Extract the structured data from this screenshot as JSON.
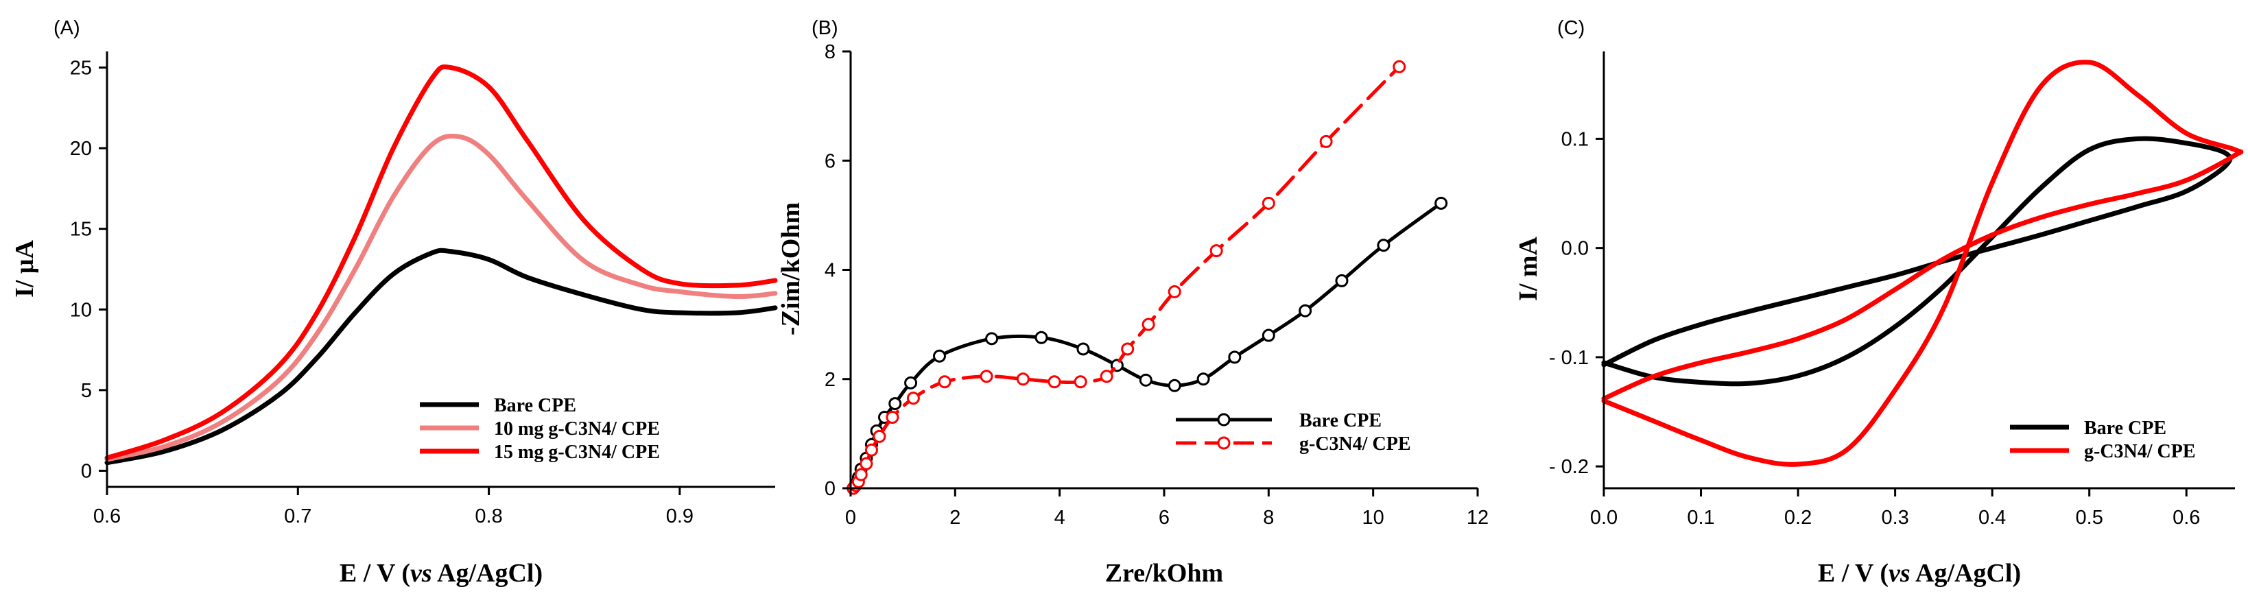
{
  "chart_data": [
    {
      "type": "line",
      "panel_label": "(A)",
      "xlabel_parts": [
        "E / V (",
        "vs",
        " Ag/AgCl)"
      ],
      "ylabel": "I/ μA",
      "xlim": [
        0.6,
        0.95
      ],
      "ylim": [
        -1,
        26
      ],
      "xticks": [
        0.6,
        0.7,
        0.8,
        0.9
      ],
      "xtick_labels": [
        "0.6",
        "0.7",
        "0.8",
        "0.9"
      ],
      "yticks": [
        0,
        5,
        10,
        15,
        20,
        25
      ],
      "ytick_labels": [
        "0",
        "5",
        "10",
        "15",
        "20",
        "25"
      ],
      "legend_position": "bottom-right",
      "series": [
        {
          "name": "Bare CPE",
          "color": "#000000",
          "x": [
            0.6,
            0.63,
            0.66,
            0.69,
            0.71,
            0.73,
            0.75,
            0.77,
            0.78,
            0.8,
            0.82,
            0.85,
            0.88,
            0.9,
            0.93,
            0.95
          ],
          "y": [
            0.5,
            1.2,
            2.5,
            4.7,
            7.0,
            9.8,
            12.2,
            13.5,
            13.6,
            13.1,
            12.0,
            10.9,
            10.0,
            9.8,
            9.8,
            10.1
          ]
        },
        {
          "name": "10 mg g-C3N4/ CPE",
          "color": "#f08080",
          "x": [
            0.6,
            0.63,
            0.66,
            0.69,
            0.71,
            0.73,
            0.75,
            0.77,
            0.785,
            0.8,
            0.82,
            0.85,
            0.88,
            0.9,
            0.93,
            0.95
          ],
          "y": [
            0.7,
            1.5,
            3.0,
            5.6,
            8.5,
            12.5,
            17.0,
            20.2,
            20.7,
            19.6,
            16.8,
            13.0,
            11.5,
            11.1,
            10.8,
            11.0
          ]
        },
        {
          "name": "15 mg g-C3N4/ CPE",
          "color": "#ff0000",
          "x": [
            0.6,
            0.63,
            0.66,
            0.69,
            0.71,
            0.73,
            0.75,
            0.77,
            0.78,
            0.8,
            0.82,
            0.85,
            0.88,
            0.9,
            0.93,
            0.95
          ],
          "y": [
            0.8,
            1.9,
            3.6,
            6.5,
            9.8,
            14.5,
            20.0,
            24.3,
            25.0,
            23.8,
            20.5,
            15.5,
            12.5,
            11.6,
            11.5,
            11.8
          ]
        }
      ]
    },
    {
      "type": "scatter",
      "panel_label": "(B)",
      "xlabel": "Zre/kOhm",
      "ylabel": "-Zim/kOhm",
      "xlim": [
        0,
        12
      ],
      "ylim": [
        0,
        8
      ],
      "xticks": [
        0,
        2,
        4,
        6,
        8,
        10,
        12
      ],
      "xtick_labels": [
        "0",
        "2",
        "4",
        "6",
        "8",
        "10",
        "12"
      ],
      "yticks": [
        0,
        2,
        4,
        6,
        8
      ],
      "ytick_labels": [
        "0",
        "2",
        "4",
        "6",
        "8"
      ],
      "legend_position": "bottom-right",
      "series": [
        {
          "name": "Bare CPE",
          "color": "#000000",
          "marker": "circle",
          "line": "solid",
          "x": [
            0.05,
            0.1,
            0.15,
            0.2,
            0.3,
            0.4,
            0.5,
            0.65,
            0.85,
            1.15,
            1.7,
            2.7,
            3.65,
            4.45,
            5.1,
            5.65,
            6.2,
            6.75,
            7.35,
            8.0,
            8.7,
            9.4,
            10.2,
            11.3
          ],
          "y": [
            0.0,
            0.08,
            0.2,
            0.35,
            0.55,
            0.8,
            1.05,
            1.3,
            1.55,
            1.93,
            2.42,
            2.74,
            2.76,
            2.55,
            2.25,
            1.98,
            1.88,
            2.0,
            2.4,
            2.8,
            3.25,
            3.8,
            4.45,
            5.22
          ]
        },
        {
          "name": "g-C3N4/ CPE",
          "color": "#ff0000",
          "marker": "circle",
          "line": "dashed",
          "x": [
            0.05,
            0.1,
            0.15,
            0.2,
            0.3,
            0.4,
            0.55,
            0.8,
            1.2,
            1.8,
            2.6,
            3.3,
            3.9,
            4.4,
            4.9,
            5.3,
            5.7,
            6.2,
            7.0,
            8.0,
            9.1,
            10.5
          ],
          "y": [
            0.0,
            0.05,
            0.12,
            0.25,
            0.45,
            0.7,
            0.95,
            1.3,
            1.65,
            1.95,
            2.05,
            2.0,
            1.95,
            1.95,
            2.05,
            2.55,
            3.0,
            3.6,
            4.35,
            5.22,
            6.35,
            7.72
          ]
        }
      ]
    },
    {
      "type": "line",
      "panel_label": "(C)",
      "xlabel_parts": [
        "E / V (",
        "vs",
        " Ag/AgCl)"
      ],
      "ylabel": "I/ mA",
      "xlim": [
        0,
        0.65
      ],
      "ylim": [
        -0.22,
        0.18
      ],
      "xticks": [
        0.0,
        0.1,
        0.2,
        0.3,
        0.4,
        0.5,
        0.6
      ],
      "xtick_labels": [
        "0.0",
        "0.1",
        "0.2",
        "0.3",
        "0.4",
        "0.5",
        "0.6"
      ],
      "yticks": [
        -0.2,
        -0.1,
        0.0,
        0.1
      ],
      "ytick_labels": [
        "- 0.2",
        "- 0.1",
        "0.0",
        "0.1"
      ],
      "legend_position": "bottom-right",
      "series": [
        {
          "name": "Bare CPE",
          "color": "#000000",
          "x": [
            0.0,
            0.05,
            0.1,
            0.15,
            0.2,
            0.25,
            0.3,
            0.35,
            0.4,
            0.45,
            0.5,
            0.55,
            0.6,
            0.64,
            0.64,
            0.6,
            0.55,
            0.5,
            0.45,
            0.4,
            0.35,
            0.3,
            0.25,
            0.2,
            0.15,
            0.1,
            0.05,
            0.0
          ],
          "y": [
            -0.105,
            -0.118,
            -0.123,
            -0.124,
            -0.117,
            -0.1,
            -0.072,
            -0.035,
            0.01,
            0.055,
            0.09,
            0.1,
            0.096,
            0.087,
            0.075,
            0.052,
            0.038,
            0.025,
            0.012,
            0.0,
            -0.012,
            -0.025,
            -0.036,
            -0.047,
            -0.058,
            -0.07,
            -0.085,
            -0.107
          ]
        },
        {
          "name": "g-C3N4/ CPE",
          "color": "#ff0000",
          "x": [
            0.0,
            0.05,
            0.1,
            0.15,
            0.2,
            0.25,
            0.3,
            0.35,
            0.4,
            0.45,
            0.5,
            0.55,
            0.6,
            0.65,
            0.65,
            0.6,
            0.55,
            0.5,
            0.45,
            0.4,
            0.35,
            0.3,
            0.25,
            0.2,
            0.15,
            0.1,
            0.05,
            0.0
          ],
          "y": [
            -0.14,
            -0.158,
            -0.176,
            -0.192,
            -0.198,
            -0.185,
            -0.13,
            -0.055,
            0.06,
            0.148,
            0.17,
            0.14,
            0.105,
            0.09,
            0.085,
            0.062,
            0.05,
            0.04,
            0.028,
            0.012,
            -0.01,
            -0.038,
            -0.065,
            -0.083,
            -0.095,
            -0.105,
            -0.118,
            -0.138
          ]
        }
      ]
    }
  ]
}
